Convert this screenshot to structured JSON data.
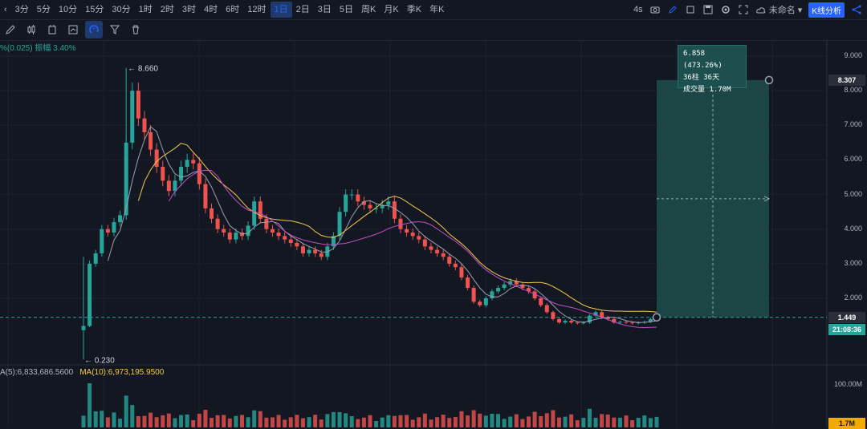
{
  "toolbar": {
    "timeframes": [
      "3分",
      "5分",
      "10分",
      "15分",
      "30分",
      "1时",
      "2时",
      "3时",
      "4时",
      "6时",
      "12时",
      "1日",
      "2日",
      "3日",
      "5日",
      "周K",
      "月K",
      "季K",
      "年K"
    ],
    "active_timeframe": "1日",
    "refresh": "4s",
    "layout_name": "未命名",
    "analysis_button": "K线分析"
  },
  "drawbar": {
    "tools": [
      "pencil-icon",
      "candle-type-icon",
      "indicator-icon",
      "alert-icon",
      "magnet-icon",
      "filter-icon",
      "trash-icon"
    ],
    "active_tool": "magnet-icon"
  },
  "chart": {
    "info_text": "%(0.025)  振幅 3.40%",
    "high_label": "← 8.660",
    "low_label": "← 0.230",
    "y_ticks": [
      "9.000",
      "8.000",
      "7.000",
      "6.000",
      "5.000",
      "4.000",
      "3.000",
      "2.000"
    ],
    "price_tag_top": "8.307",
    "price_tag_current": "1.449",
    "countdown": "21:08:36",
    "volume_legend": "A(5):6,833,686.5600",
    "volume_legend_ma10": "MA(10):6,973,195.9500",
    "volume_tick": "100.00M",
    "volume_tag": "1.7M",
    "colors": {
      "up": "#26a69a",
      "down": "#ef5350",
      "bg": "#131722",
      "ma_yellow": "#f2c94c",
      "ma_purple": "#c04fc8",
      "ma_gray": "#9aa0b0",
      "highlight": "#1f4d4b"
    }
  },
  "measurement": {
    "line1": "6.858 (473.26%)",
    "line2": "36柱 36天",
    "line3": "成交量 1.70M"
  },
  "chart_data": {
    "type": "candlestick",
    "y_range": [
      0,
      9.5
    ],
    "prices": [
      1.2,
      3.0,
      3.3,
      4.0,
      3.9,
      4.2,
      4.4,
      6.5,
      8.0,
      7.2,
      6.8,
      6.3,
      5.8,
      5.4,
      5.1,
      5.4,
      5.8,
      6.0,
      5.9,
      5.3,
      4.6,
      4.3,
      4.0,
      3.9,
      3.7,
      3.9,
      3.8,
      4.1,
      4.8,
      4.3,
      4.0,
      3.9,
      3.8,
      3.7,
      3.6,
      3.5,
      3.3,
      3.4,
      3.3,
      3.2,
      3.5,
      3.8,
      4.5,
      5.0,
      5.0,
      4.8,
      4.7,
      4.6,
      4.6,
      4.7,
      4.8,
      4.3,
      4.0,
      3.9,
      3.8,
      3.7,
      3.5,
      3.4,
      3.3,
      3.2,
      3.0,
      2.9,
      2.6,
      2.3,
      1.9,
      1.8,
      2.0,
      2.2,
      2.3,
      2.4,
      2.5,
      2.4,
      2.3,
      2.2,
      2.0,
      1.8,
      1.6,
      1.4,
      1.3,
      1.35,
      1.3,
      1.28,
      1.3,
      1.5,
      1.6,
      1.45,
      1.4,
      1.3,
      1.32,
      1.3,
      1.28,
      1.3,
      1.32,
      1.4,
      1.449
    ],
    "high": 8.66,
    "low": 0.23,
    "current": 1.449,
    "measure_top": 8.307
  }
}
